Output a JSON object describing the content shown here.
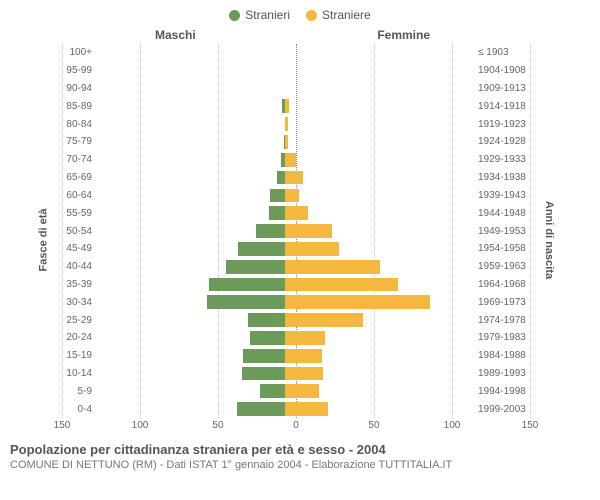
{
  "legend": {
    "male": {
      "label": "Stranieri",
      "color": "#6c9a5b"
    },
    "female": {
      "label": "Straniere",
      "color": "#f4b83f"
    }
  },
  "gender_titles": {
    "male": "Maschi",
    "female": "Femmine"
  },
  "axes": {
    "left_title": "Fasce di età",
    "right_title": "Anni di nascita",
    "xmax": 150,
    "x_ticks_left": [
      150,
      100,
      50,
      0
    ],
    "x_ticks_right": [
      0,
      50,
      100,
      150
    ]
  },
  "style": {
    "grid_color": "#cccccc",
    "center_color": "#888888",
    "background": "#ffffff",
    "label_fontsize": 10,
    "axis_title_fontsize": 11
  },
  "rows": [
    {
      "age": "100+",
      "birth": "≤ 1903",
      "m": 0,
      "f": 0
    },
    {
      "age": "95-99",
      "birth": "1904-1908",
      "m": 0,
      "f": 0
    },
    {
      "age": "90-94",
      "birth": "1909-1913",
      "m": 0,
      "f": 0
    },
    {
      "age": "85-89",
      "birth": "1914-1918",
      "m": 2,
      "f": 3
    },
    {
      "age": "80-84",
      "birth": "1919-1923",
      "m": 0,
      "f": 2
    },
    {
      "age": "75-79",
      "birth": "1924-1928",
      "m": 1,
      "f": 2
    },
    {
      "age": "70-74",
      "birth": "1929-1933",
      "m": 3,
      "f": 9
    },
    {
      "age": "65-69",
      "birth": "1934-1938",
      "m": 6,
      "f": 14
    },
    {
      "age": "60-64",
      "birth": "1939-1943",
      "m": 12,
      "f": 11
    },
    {
      "age": "55-59",
      "birth": "1944-1948",
      "m": 13,
      "f": 18
    },
    {
      "age": "50-54",
      "birth": "1949-1953",
      "m": 23,
      "f": 37
    },
    {
      "age": "45-49",
      "birth": "1954-1958",
      "m": 37,
      "f": 43
    },
    {
      "age": "40-44",
      "birth": "1959-1963",
      "m": 47,
      "f": 75
    },
    {
      "age": "35-39",
      "birth": "1964-1968",
      "m": 60,
      "f": 90
    },
    {
      "age": "30-34",
      "birth": "1969-1973",
      "m": 62,
      "f": 115
    },
    {
      "age": "25-29",
      "birth": "1974-1978",
      "m": 29,
      "f": 62
    },
    {
      "age": "20-24",
      "birth": "1979-1983",
      "m": 28,
      "f": 32
    },
    {
      "age": "15-19",
      "birth": "1984-1988",
      "m": 33,
      "f": 29
    },
    {
      "age": "10-14",
      "birth": "1989-1993",
      "m": 34,
      "f": 30
    },
    {
      "age": "5-9",
      "birth": "1994-1998",
      "m": 20,
      "f": 27
    },
    {
      "age": "0-4",
      "birth": "1999-2003",
      "m": 38,
      "f": 34
    }
  ],
  "footer": {
    "title": "Popolazione per cittadinanza straniera per età e sesso - 2004",
    "subtitle": "COMUNE DI NETTUNO (RM) - Dati ISTAT 1° gennaio 2004 - Elaborazione TUTTITALIA.IT"
  }
}
